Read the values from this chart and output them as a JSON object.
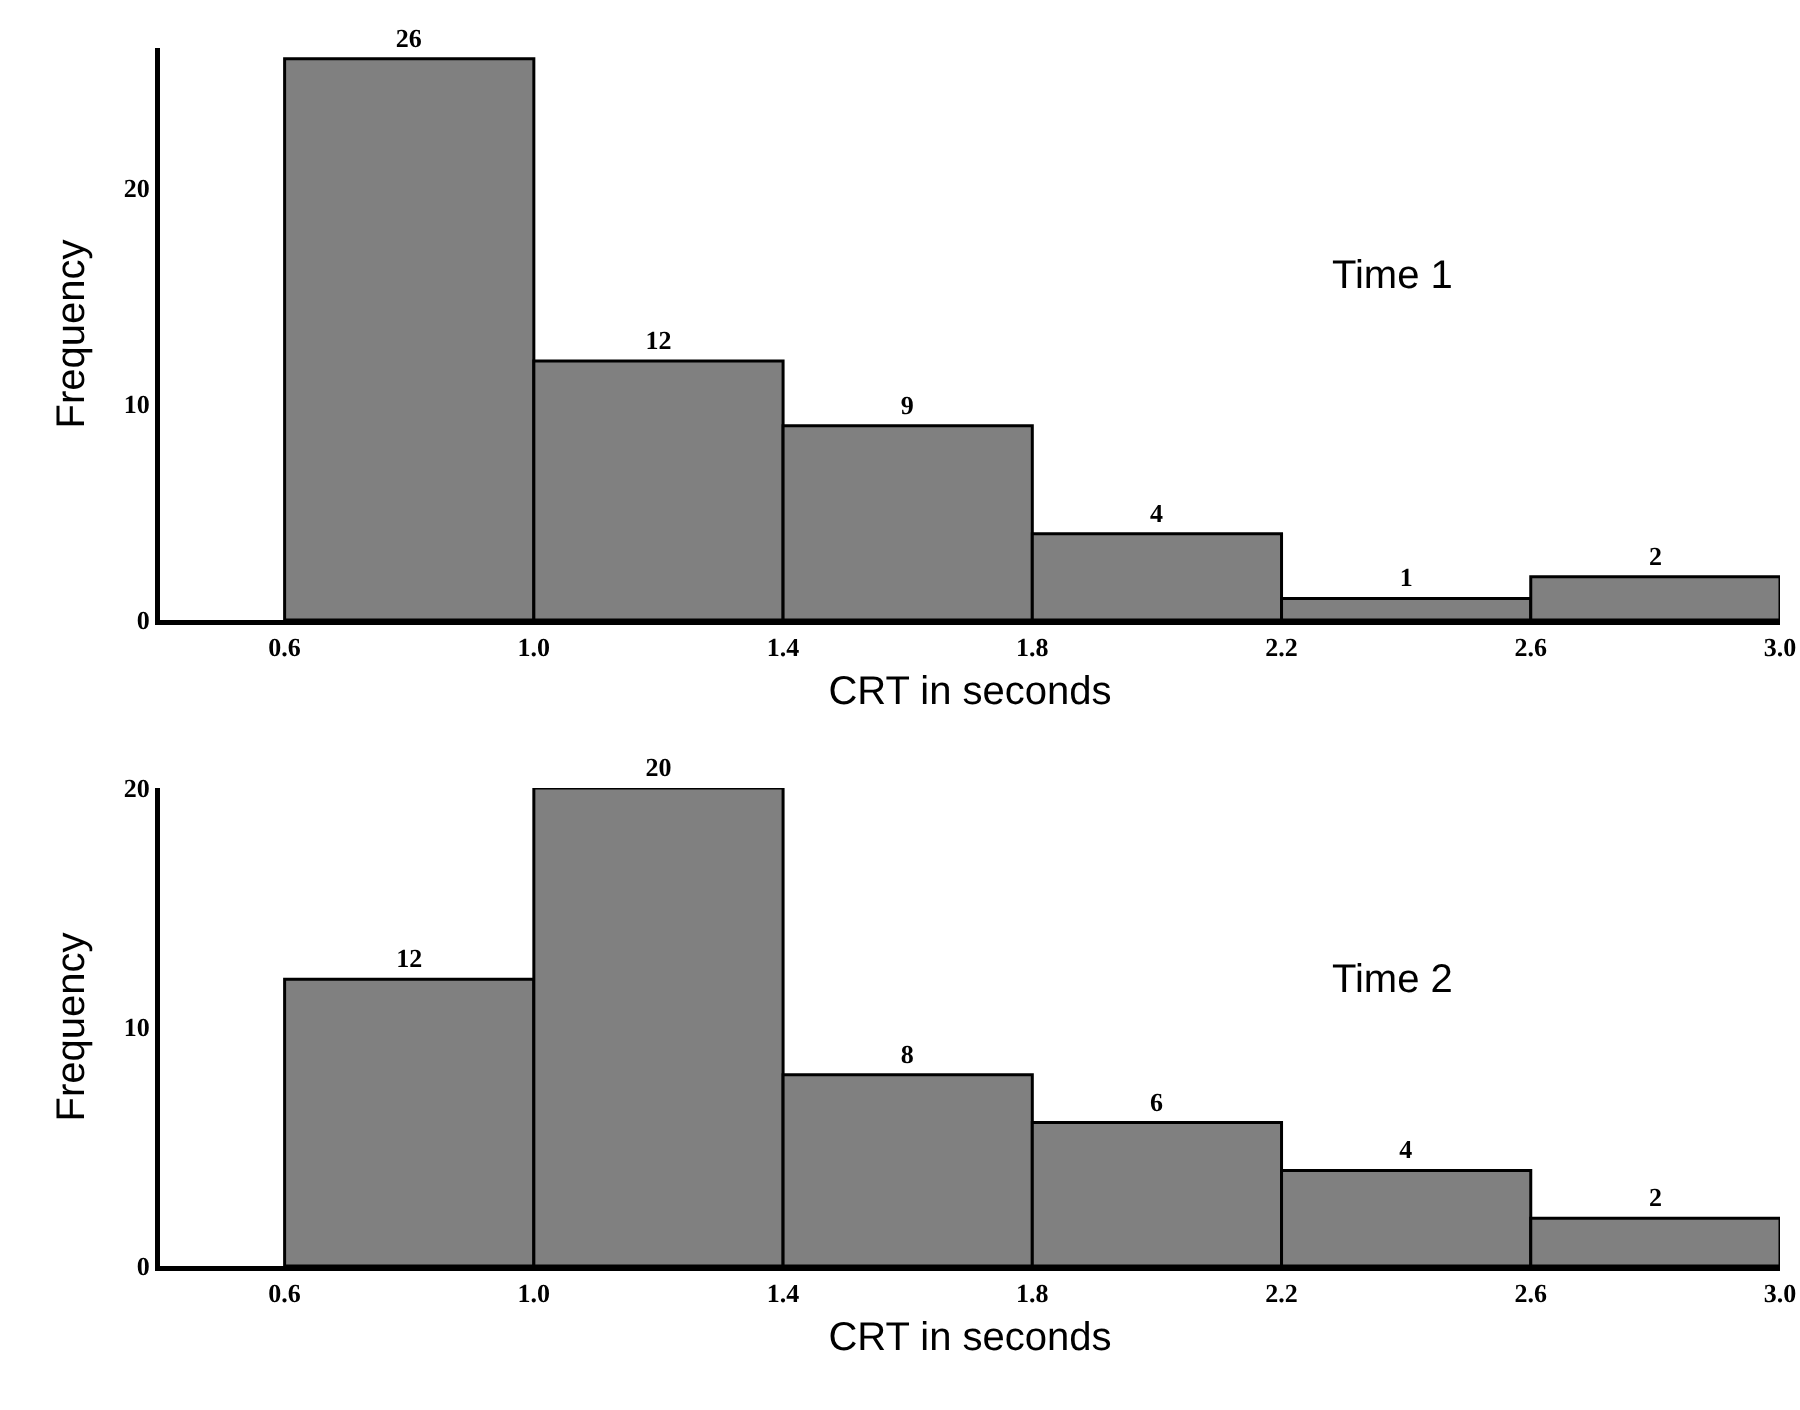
{
  "chart_data": [
    {
      "type": "histogram",
      "ylabel": "Frequency",
      "xlabel": "CRT in seconds",
      "annotations": [
        "Time 1"
      ],
      "bins": [
        0.6,
        1.0,
        1.4,
        1.8,
        2.2,
        2.6,
        3.0
      ],
      "values": [
        26,
        12,
        9,
        4,
        1,
        2
      ],
      "color": "#808080",
      "data_labels": true,
      "xlim": [
        0.4,
        3.0
      ],
      "xticks": [
        {
          "value": 0.6,
          "label": "0.6"
        },
        {
          "value": 1.0,
          "label": "1.0"
        },
        {
          "value": 1.4,
          "label": "1.4"
        },
        {
          "value": 1.8,
          "label": "1.8"
        },
        {
          "value": 2.2,
          "label": "2.2"
        },
        {
          "value": 2.6,
          "label": "2.6"
        },
        {
          "value": 3.0,
          "label": "3.0"
        }
      ],
      "ylim": [
        0,
        26.5
      ],
      "yticks": [
        0,
        10,
        20
      ],
      "grid": false,
      "legend": false
    },
    {
      "type": "histogram",
      "ylabel": "Frequency",
      "xlabel": "CRT in seconds",
      "annotations": [
        "Time 2"
      ],
      "bins": [
        0.6,
        1.0,
        1.4,
        1.8,
        2.2,
        2.6,
        3.0
      ],
      "values": [
        12,
        20,
        8,
        6,
        4,
        2
      ],
      "color": "#808080",
      "data_labels": true,
      "xlim": [
        0.4,
        3.0
      ],
      "xticks": [
        {
          "value": 0.6,
          "label": "0.6"
        },
        {
          "value": 1.0,
          "label": "1.0"
        },
        {
          "value": 1.4,
          "label": "1.4"
        },
        {
          "value": 1.8,
          "label": "1.8"
        },
        {
          "value": 2.2,
          "label": "2.2"
        },
        {
          "value": 2.6,
          "label": "2.6"
        },
        {
          "value": 3.0,
          "label": "3.0"
        }
      ],
      "ylim": [
        0,
        20
      ],
      "yticks": [
        0,
        10,
        20
      ],
      "grid": false,
      "legend": false
    }
  ]
}
